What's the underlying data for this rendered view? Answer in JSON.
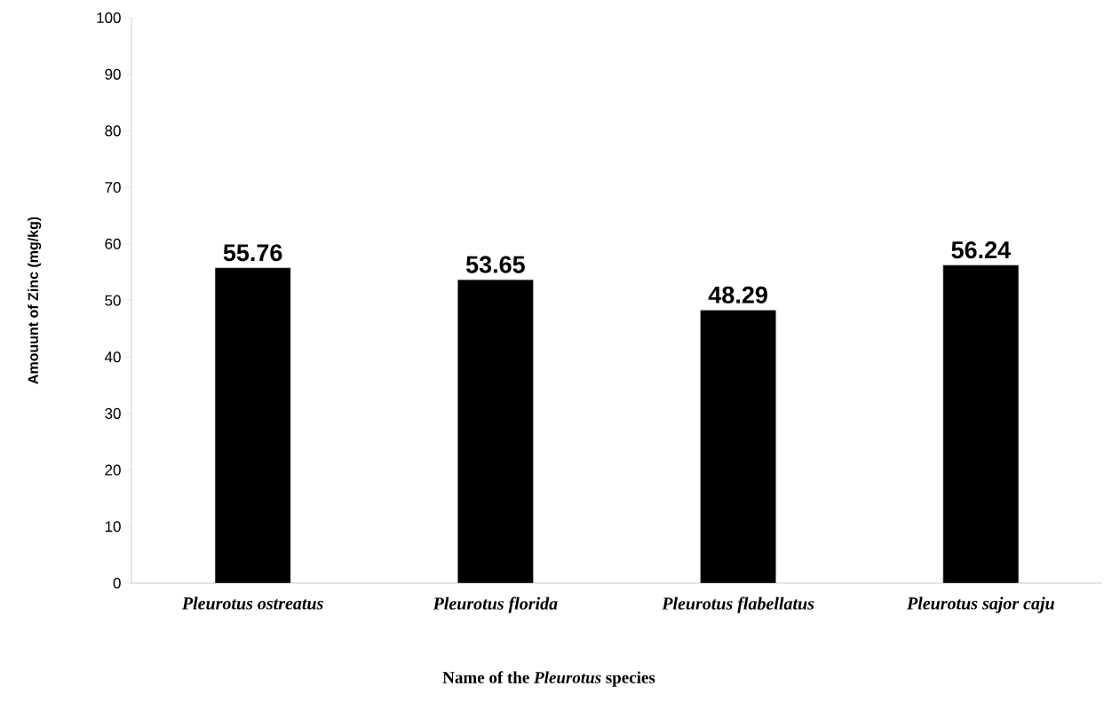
{
  "chart_data": {
    "type": "bar",
    "xlabel": "Name of the *Pleurotus* species",
    "ylabel": "Amouunt of Zinc (mg/kg)",
    "categories": [
      "Pleurotus ostreatus",
      "Pleurotus florida",
      "Pleurotus flabellatus",
      "Pleurotus sajor caju"
    ],
    "values": [
      55.76,
      53.65,
      48.29,
      56.24
    ],
    "color": "#000000",
    "data_labels": true,
    "ylim": [
      0,
      100
    ],
    "yticks": [
      0,
      10,
      20,
      30,
      40,
      50,
      60,
      70,
      80,
      90,
      100
    ]
  }
}
